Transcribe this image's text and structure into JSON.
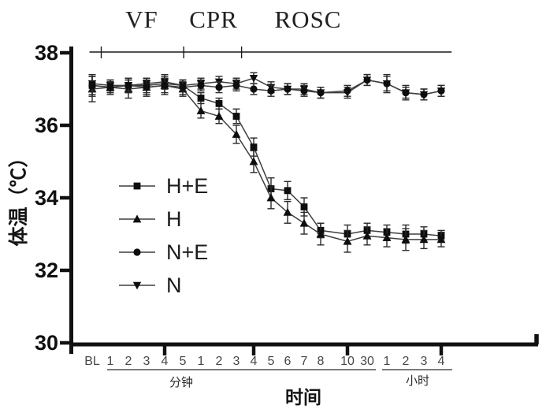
{
  "chart_data": {
    "type": "line",
    "title": "",
    "xlabel": "时间",
    "ylabel": "体温（℃）",
    "ylim": [
      30,
      38
    ],
    "yticks": [
      38,
      36,
      34,
      32,
      30
    ],
    "grid": false,
    "legend_position": "inside-left",
    "axis_color": "#111111",
    "line_color": "#3f3f3f",
    "marker_color": "#0e0e0e",
    "x_categories": [
      "BL",
      "1",
      "2",
      "3",
      "4",
      "5",
      "1",
      "2",
      "3",
      "4",
      "5",
      "6",
      "7",
      "8",
      "10",
      "30",
      "1",
      "2",
      "3",
      "4"
    ],
    "x_major_tick_indices": [
      4,
      9,
      14,
      19
    ],
    "x_groups": [
      {
        "label": "分钟",
        "from_index": 1,
        "to_index": 15
      },
      {
        "label": "小时",
        "from_index": 16,
        "to_index": 19
      }
    ],
    "phases": [
      {
        "label": "VF"
      },
      {
        "label": "CPR"
      },
      {
        "label": "ROSC"
      }
    ],
    "phase_boundaries_index": [
      0.5,
      5.05,
      8.3,
      19.6
    ],
    "series": [
      {
        "name": "H+E",
        "marker": "square",
        "values": [
          37.1,
          37.05,
          37.1,
          37.1,
          37.15,
          37.1,
          36.75,
          36.6,
          36.25,
          35.4,
          34.25,
          34.2,
          33.75,
          33.1,
          33.0,
          33.1,
          33.05,
          33.0,
          33.0,
          32.95
        ],
        "errors": [
          0.3,
          0.15,
          0.2,
          0.2,
          0.15,
          0.15,
          0.15,
          0.15,
          0.2,
          0.25,
          0.3,
          0.25,
          0.25,
          0.2,
          0.25,
          0.2,
          0.2,
          0.25,
          0.2,
          0.15
        ]
      },
      {
        "name": "H",
        "marker": "triangle-up",
        "values": [
          37.0,
          37.05,
          37.0,
          37.05,
          37.1,
          37.0,
          36.4,
          36.25,
          35.75,
          35.0,
          34.0,
          33.6,
          33.3,
          33.0,
          32.8,
          32.95,
          32.9,
          32.85,
          32.85,
          32.85
        ],
        "errors": [
          0.35,
          0.2,
          0.25,
          0.25,
          0.25,
          0.2,
          0.2,
          0.2,
          0.25,
          0.3,
          0.3,
          0.3,
          0.3,
          0.3,
          0.3,
          0.25,
          0.25,
          0.3,
          0.25,
          0.2
        ]
      },
      {
        "name": "N+E",
        "marker": "circle",
        "values": [
          37.1,
          37.05,
          37.1,
          37.05,
          37.1,
          37.05,
          37.1,
          37.05,
          37.1,
          37.0,
          36.95,
          37.0,
          36.95,
          36.9,
          36.95,
          37.25,
          37.15,
          36.9,
          36.85,
          36.95
        ],
        "errors": [
          0.25,
          0.15,
          0.2,
          0.2,
          0.2,
          0.2,
          0.15,
          0.15,
          0.15,
          0.15,
          0.15,
          0.15,
          0.15,
          0.15,
          0.15,
          0.15,
          0.25,
          0.2,
          0.15,
          0.15
        ]
      },
      {
        "name": "N",
        "marker": "triangle-down",
        "values": [
          37.15,
          37.1,
          37.1,
          37.15,
          37.2,
          37.1,
          37.15,
          37.2,
          37.15,
          37.3,
          37.05,
          37.0,
          37.0,
          36.9,
          36.9,
          37.25,
          37.15,
          36.9,
          36.85,
          36.95
        ],
        "errors": [
          0.2,
          0.15,
          0.15,
          0.15,
          0.2,
          0.15,
          0.15,
          0.15,
          0.15,
          0.15,
          0.15,
          0.15,
          0.15,
          0.15,
          0.15,
          0.15,
          0.2,
          0.15,
          0.15,
          0.15
        ]
      }
    ]
  }
}
